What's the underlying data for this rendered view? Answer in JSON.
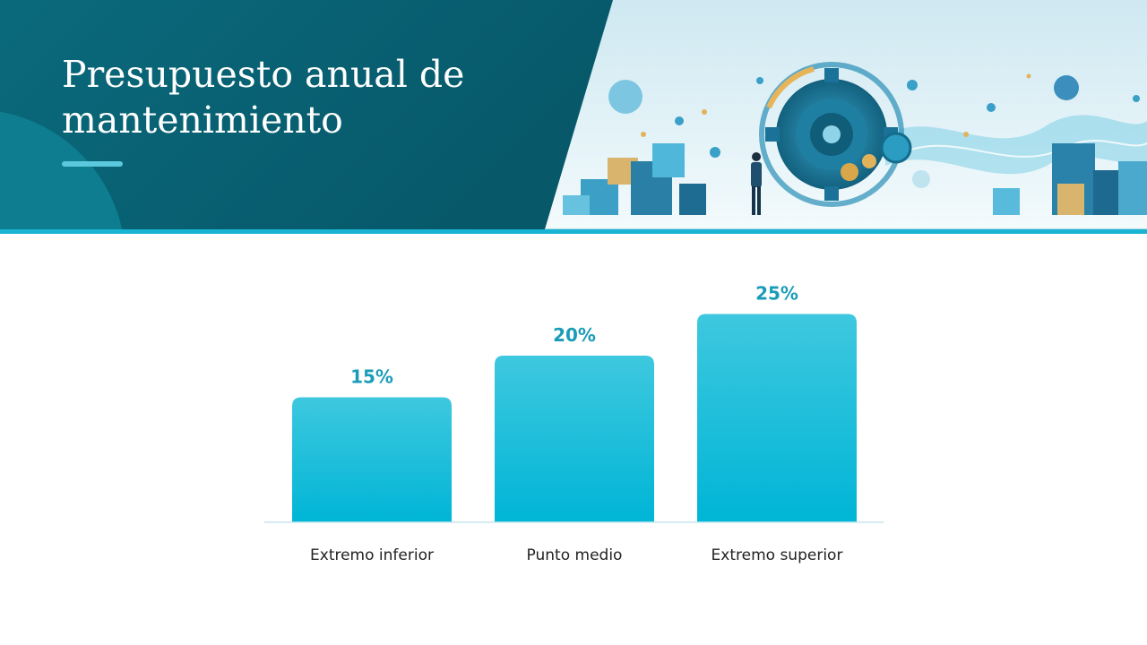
{
  "slide": {
    "title_line1": "Presupuesto anual de",
    "title_line2": "mantenimiento"
  },
  "colors": {
    "header_dark": "#075a6b",
    "accent": "#19b3d3",
    "bar": "#1fbfdb",
    "value_text": "#1a9cb8"
  },
  "chart_data": {
    "type": "bar",
    "categories": [
      "Extremo inferior",
      "Punto medio",
      "Extremo superior"
    ],
    "values": [
      15,
      20,
      25
    ],
    "value_labels": [
      "15%",
      "20%",
      "25%"
    ],
    "unit": "%",
    "ylim": [
      0,
      30
    ],
    "grid": false
  }
}
